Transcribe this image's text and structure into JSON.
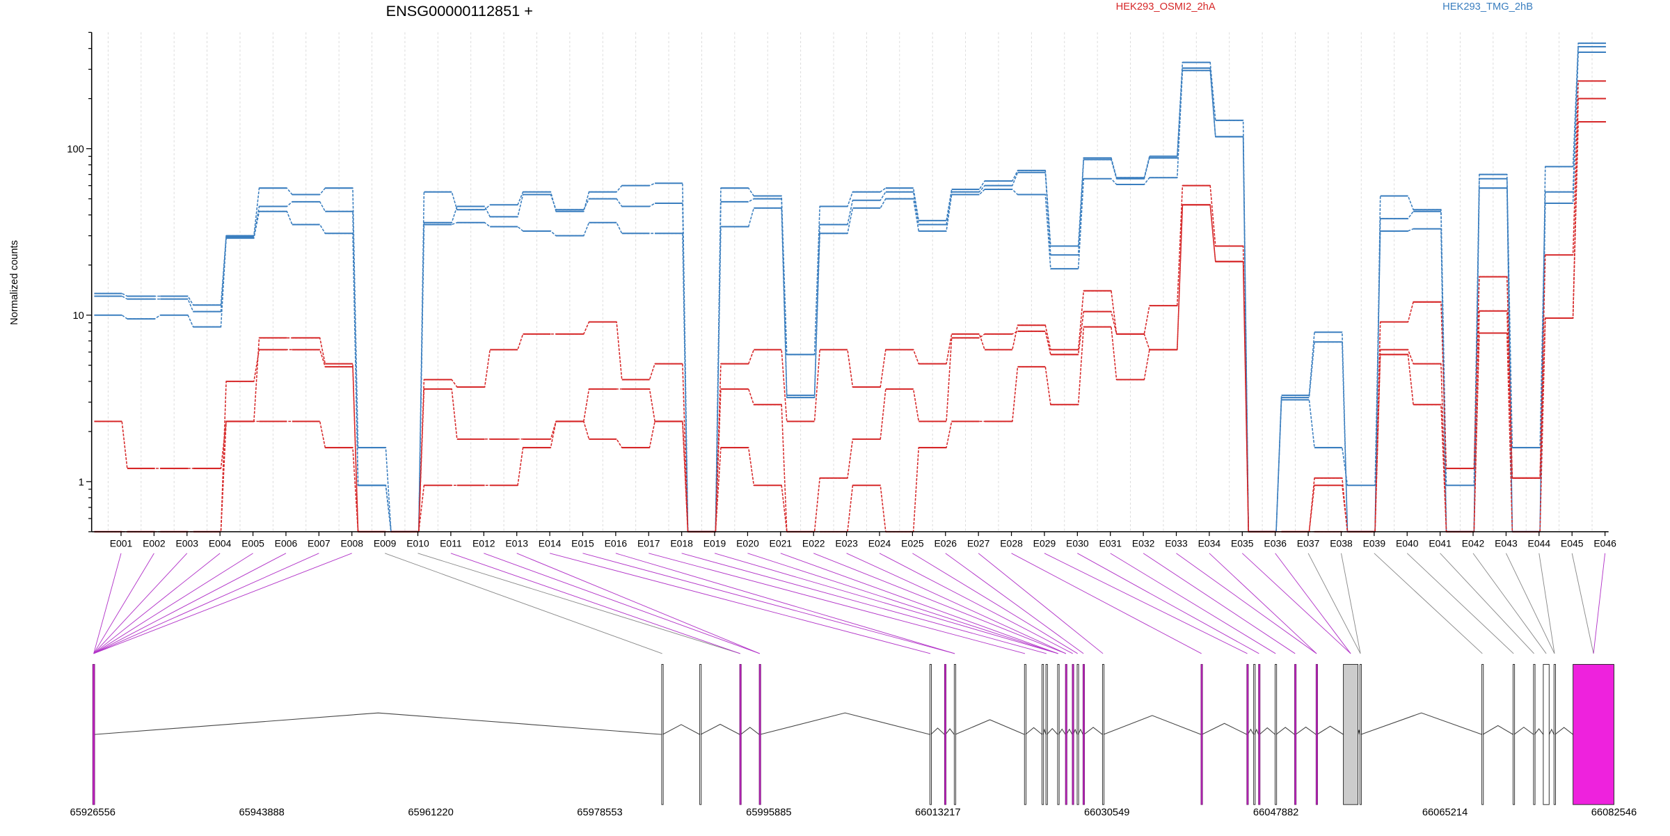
{
  "chart_data": {
    "type": "line",
    "title": "ENSG00000112851 +",
    "ylabel": "Normalized counts",
    "yscale": "log",
    "ylim": [
      0.5,
      500
    ],
    "y_ticks": [
      1,
      10,
      100
    ],
    "y_tick_labels": [
      "1",
      "10",
      "100"
    ],
    "categories": [
      "E001",
      "E002",
      "E003",
      "E004",
      "E005",
      "E006",
      "E007",
      "E008",
      "E009",
      "E010",
      "E011",
      "E012",
      "E013",
      "E014",
      "E015",
      "E016",
      "E017",
      "E018",
      "E019",
      "E020",
      "E021",
      "E022",
      "E023",
      "E024",
      "E025",
      "E026",
      "E027",
      "E028",
      "E029",
      "E030",
      "E031",
      "E032",
      "E033",
      "E034",
      "E035",
      "E036",
      "E037",
      "E038",
      "E039",
      "E040",
      "E041",
      "E042",
      "E043",
      "E044",
      "E045",
      "E046"
    ],
    "legend": [
      {
        "label": "HEK293_OSMI2_2hA",
        "color": "#d62728"
      },
      {
        "label": "HEK293_TMG_2hB",
        "color": "#3a7ebf"
      }
    ],
    "series": [
      {
        "group": "HEK293_TMG_2hB",
        "color": "#3a7ebf",
        "values": [
          13.5,
          13,
          13,
          11.5,
          30,
          58,
          53,
          58,
          1.6,
          0.5,
          55,
          43,
          46,
          55,
          42,
          55,
          60,
          62,
          0.5,
          58,
          52,
          5.8,
          45,
          55,
          58,
          37,
          57,
          64,
          74,
          26,
          88,
          67,
          90,
          330,
          148,
          0.5,
          3.3,
          7.9,
          0.5,
          52,
          43,
          0.5,
          70,
          0.5,
          78,
          430
        ]
      },
      {
        "group": "HEK293_TMG_2hB",
        "color": "#3a7ebf",
        "values": [
          13,
          12.5,
          12.5,
          10.5,
          29.5,
          45,
          48,
          42,
          0.95,
          0.5,
          36,
          45,
          39,
          53,
          43,
          50,
          45,
          47,
          0.5,
          48,
          50,
          3.3,
          35,
          49,
          55,
          35,
          55,
          60,
          72,
          23,
          86,
          66,
          88,
          305,
          118,
          0.5,
          3.2,
          6.9,
          0.5,
          38,
          42,
          0.95,
          66,
          1.6,
          55,
          410
        ]
      },
      {
        "group": "HEK293_TMG_2hB",
        "color": "#3a7ebf",
        "values": [
          10,
          9.5,
          10,
          8.5,
          29,
          42,
          35,
          31,
          0.95,
          0.5,
          35,
          36,
          34,
          32,
          30,
          36,
          31,
          31,
          0.5,
          34,
          44,
          3.2,
          31,
          44,
          50,
          32,
          53,
          57,
          53,
          19,
          66,
          61,
          67,
          295,
          118,
          0.5,
          3.1,
          1.6,
          0.95,
          32,
          33,
          0.5,
          58,
          0.5,
          47,
          380
        ]
      },
      {
        "group": "HEK293_OSMI2_2hA",
        "color": "#d62728",
        "values": [
          2.3,
          1.2,
          1.2,
          1.2,
          2.3,
          7.3,
          7.3,
          5.1,
          0.5,
          0.5,
          4.1,
          3.7,
          6.2,
          7.7,
          7.7,
          9.1,
          4.1,
          5.1,
          0.5,
          5.1,
          6.2,
          2.3,
          6.2,
          3.7,
          6.2,
          5.1,
          7.7,
          6.2,
          8.7,
          6.2,
          14,
          7.7,
          11.4,
          60,
          26,
          0.5,
          0.5,
          1.05,
          0.5,
          9.1,
          12,
          1.2,
          17,
          1.05,
          23,
          255
        ]
      },
      {
        "group": "HEK293_OSMI2_2hA",
        "color": "#d62728",
        "values": [
          0.5,
          0.5,
          0.5,
          0.5,
          4,
          6.2,
          6.2,
          4.9,
          0.5,
          0.5,
          3.6,
          1.8,
          1.8,
          1.8,
          2.3,
          3.6,
          3.6,
          2.3,
          0.5,
          3.6,
          2.9,
          0.5,
          1.05,
          1.8,
          3.6,
          2.3,
          7.3,
          7.7,
          8,
          5.8,
          10.5,
          7.7,
          6.2,
          46,
          21,
          0.5,
          0.5,
          0.95,
          0.5,
          6.2,
          5.1,
          0.5,
          10.6,
          1.05,
          9.6,
          200
        ]
      },
      {
        "group": "HEK293_OSMI2_2hA",
        "color": "#d62728",
        "values": [
          0.5,
          0.5,
          0.5,
          0.5,
          2.3,
          2.3,
          2.3,
          1.6,
          0.5,
          0.5,
          0.95,
          0.95,
          0.95,
          1.6,
          2.3,
          1.8,
          1.6,
          2.3,
          0.5,
          1.6,
          0.95,
          0.5,
          0.5,
          0.95,
          0.5,
          1.6,
          2.3,
          2.3,
          4.9,
          2.9,
          8.5,
          4.1,
          6.2,
          46,
          21,
          0.5,
          0.5,
          0.5,
          0.5,
          5.8,
          2.9,
          0.5,
          7.8,
          0.5,
          9.6,
          145
        ]
      }
    ],
    "gene_model": {
      "coord_ticks": [
        "65926556",
        "65943888",
        "65961220",
        "65978553",
        "65995885",
        "66013217",
        "66030549",
        "66047882",
        "66065214",
        "66082546"
      ],
      "coord_range": [
        65926556,
        66082546
      ],
      "highlight_color": "#ee22dd",
      "exons": [
        {
          "start": 65926556,
          "end": 65926756,
          "fill": "#cc22cc"
        },
        {
          "start": 65984900,
          "end": 65985000,
          "fill": "none"
        },
        {
          "start": 65988800,
          "end": 65988900,
          "fill": "none"
        },
        {
          "start": 65992900,
          "end": 65993000,
          "fill": "#cc22cc"
        },
        {
          "start": 65994900,
          "end": 65995000,
          "fill": "#cc22cc"
        },
        {
          "start": 66012400,
          "end": 66012500,
          "fill": "none"
        },
        {
          "start": 66013900,
          "end": 66014000,
          "fill": "#cc22cc"
        },
        {
          "start": 66014900,
          "end": 66015000,
          "fill": "none"
        },
        {
          "start": 66022100,
          "end": 66022200,
          "fill": "none"
        },
        {
          "start": 66023900,
          "end": 66024000,
          "fill": "none"
        },
        {
          "start": 66024300,
          "end": 66024400,
          "fill": "none"
        },
        {
          "start": 66025500,
          "end": 66025600,
          "fill": "none"
        },
        {
          "start": 66026300,
          "end": 66026400,
          "fill": "#cc22cc"
        },
        {
          "start": 66027000,
          "end": 66027100,
          "fill": "#cc22cc"
        },
        {
          "start": 66027500,
          "end": 66027600,
          "fill": "none"
        },
        {
          "start": 66028100,
          "end": 66028200,
          "fill": "#cc22cc"
        },
        {
          "start": 66030100,
          "end": 66030200,
          "fill": "none"
        },
        {
          "start": 66040200,
          "end": 66040300,
          "fill": "#cc22cc"
        },
        {
          "start": 66044900,
          "end": 66045000,
          "fill": "#cc22cc"
        },
        {
          "start": 66045600,
          "end": 66045700,
          "fill": "none"
        },
        {
          "start": 66046100,
          "end": 66046200,
          "fill": "#cc22cc"
        },
        {
          "start": 66047800,
          "end": 66047900,
          "fill": "none"
        },
        {
          "start": 66049800,
          "end": 66049900,
          "fill": "#cc22cc"
        },
        {
          "start": 66052000,
          "end": 66052100,
          "fill": "#cc22cc"
        },
        {
          "start": 66054800,
          "end": 66056300,
          "fill": "#cccccc"
        },
        {
          "start": 66056500,
          "end": 66056600,
          "fill": "none"
        },
        {
          "start": 66069000,
          "end": 66069100,
          "fill": "none"
        },
        {
          "start": 66072200,
          "end": 66072300,
          "fill": "none"
        },
        {
          "start": 66074300,
          "end": 66074400,
          "fill": "none"
        },
        {
          "start": 66075300,
          "end": 66075900,
          "fill": "none"
        },
        {
          "start": 66076400,
          "end": 66076500,
          "fill": "none"
        },
        {
          "start": 66078350,
          "end": 66082546,
          "fill": "#ee22dd"
        }
      ],
      "exon_map": [
        0,
        0,
        0,
        0,
        0,
        0,
        0,
        0,
        1,
        3,
        3,
        4,
        4,
        5,
        7,
        7,
        8,
        10,
        11,
        11,
        11,
        12,
        12,
        13,
        14,
        15,
        16,
        17,
        18,
        20,
        21,
        22,
        23,
        23,
        24,
        24,
        25,
        25,
        26,
        27,
        28,
        29,
        30,
        30,
        31,
        31
      ],
      "highlighted_exons": [
        1,
        2,
        3,
        4,
        5,
        6,
        7,
        8,
        11,
        12,
        13,
        14,
        15,
        16,
        17,
        18,
        19,
        20,
        21,
        22,
        23,
        24,
        25,
        26,
        27,
        28,
        29,
        30,
        31,
        32,
        33,
        34,
        35,
        36,
        46
      ]
    }
  }
}
